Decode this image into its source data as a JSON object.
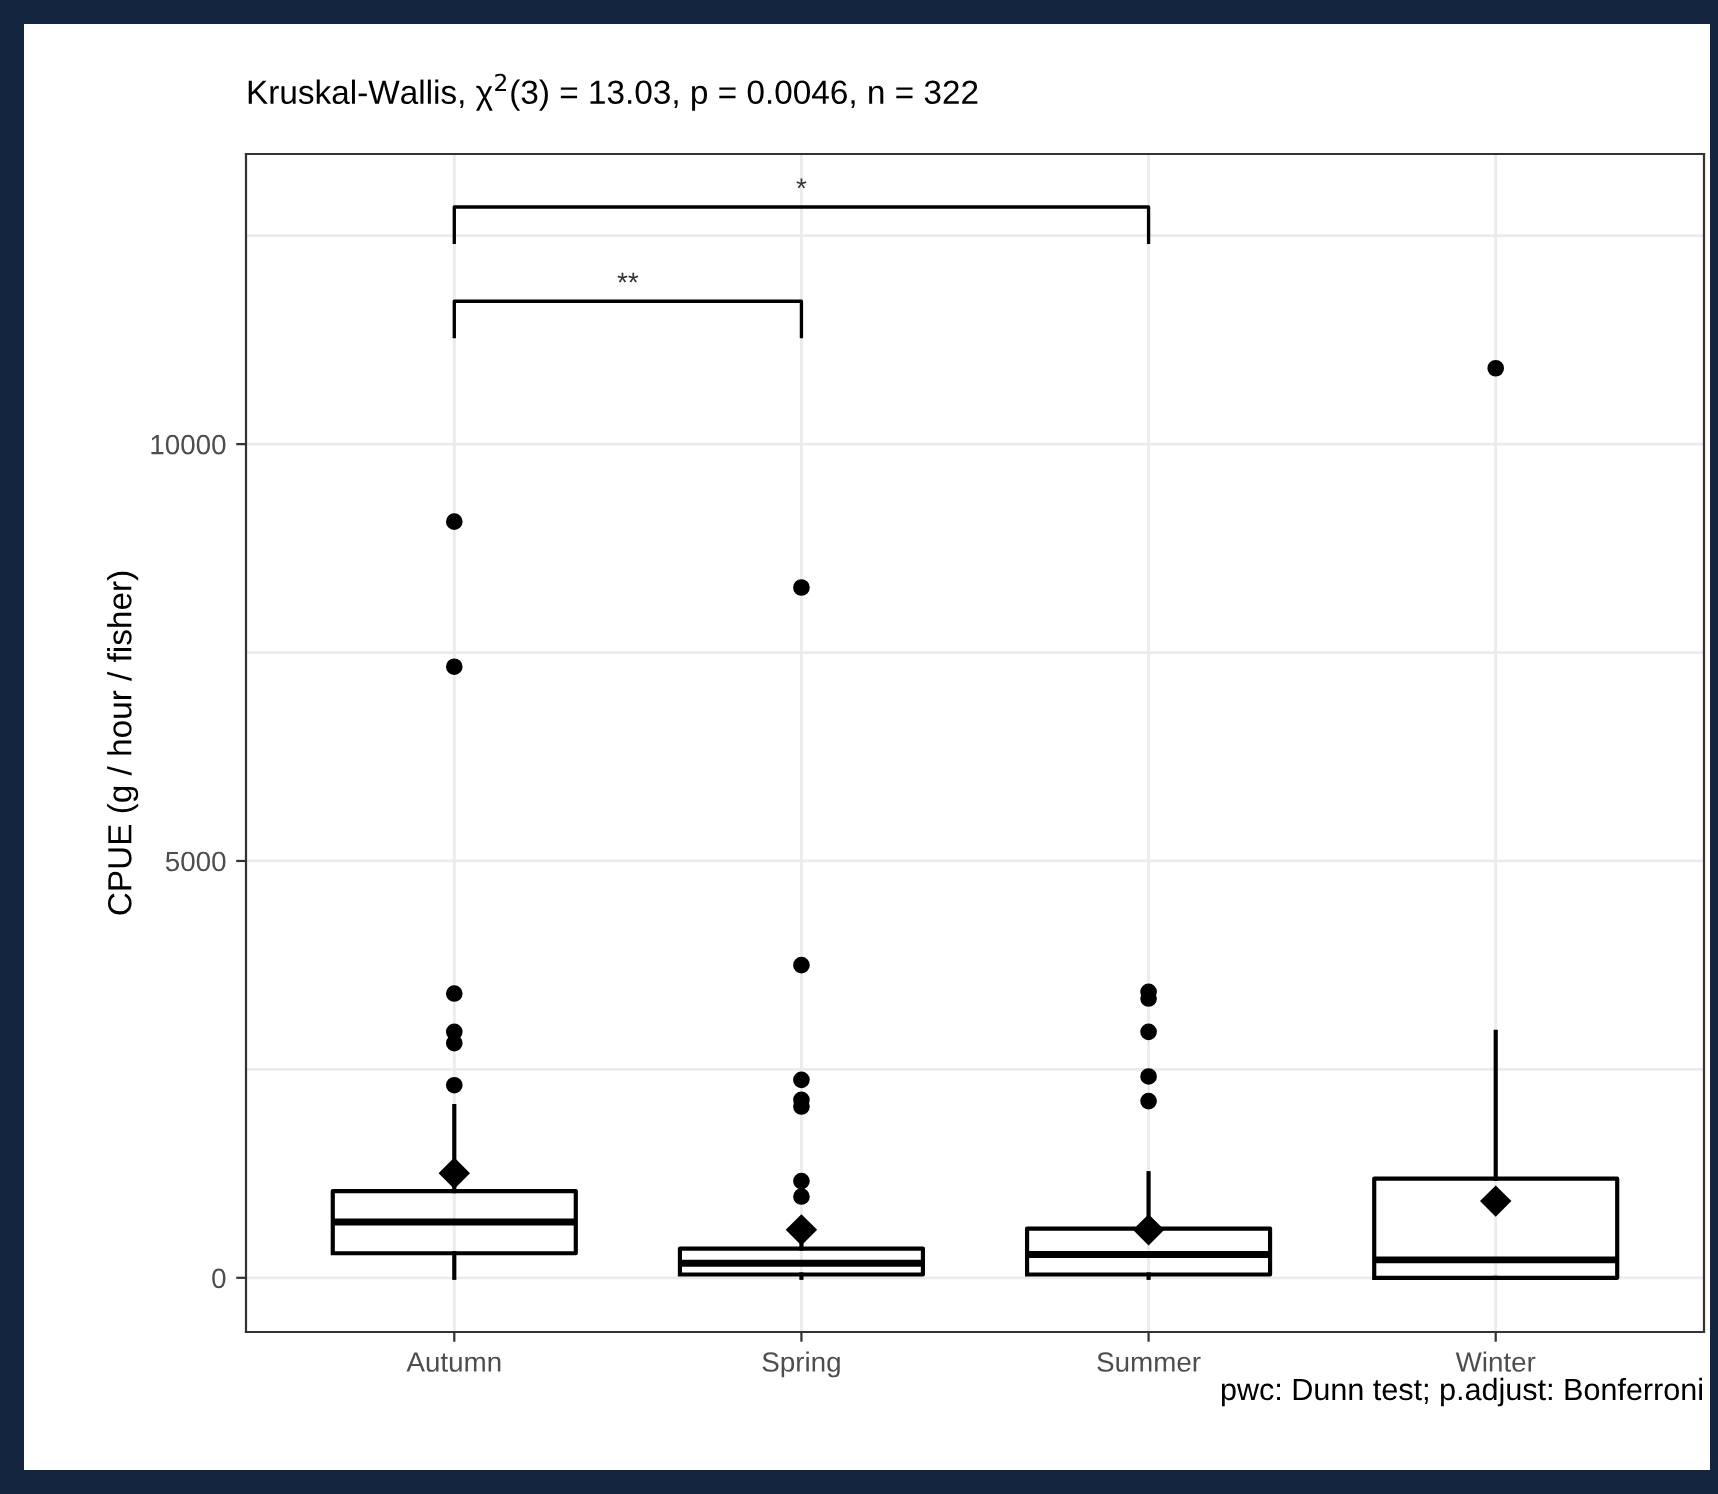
{
  "chart_data": {
    "type": "box",
    "title": "Kruskal-Wallis, χ$^{2}$(3) = 13.03, p = 0.0046, n = 322",
    "ylabel": "CPUE (g / hour / fisher)",
    "categories": [
      "Autumn",
      "Spring",
      "Summer",
      "Winter"
    ],
    "boxes": [
      {
        "low": 0,
        "q1": 295,
        "median": 670,
        "q3": 1040,
        "high": 2060,
        "mean": 1255,
        "outliers": [
          2310,
          2815,
          2950,
          3410,
          7330,
          9070
        ]
      },
      {
        "low": 0,
        "q1": 40,
        "median": 175,
        "q3": 350,
        "high": 600,
        "mean": 575,
        "outliers": [
          975,
          1160,
          2055,
          2135,
          2375,
          3750,
          8280
        ]
      },
      {
        "low": 0,
        "q1": 40,
        "median": 280,
        "q3": 590,
        "high": 1255,
        "mean": 575,
        "outliers": [
          2120,
          2415,
          2950,
          3350,
          3430
        ]
      },
      {
        "low": 0,
        "q1": 0,
        "median": 215,
        "q3": 1190,
        "high": 2950,
        "mean": 920,
        "outliers": [
          10910
        ]
      }
    ],
    "color": "#000000",
    "ylim": [
      -650,
      13480
    ],
    "yticks": [
      0,
      {
        "value": 2500,
        "label": null
      },
      5000,
      {
        "value": 7500,
        "label": null
      },
      10000,
      {
        "value": 12500,
        "label": null
      }
    ],
    "grid": true,
    "marker": "circle",
    "annotations": [
      "*",
      "**",
      "pwc: Dunn test; p.adjust: Bonferroni"
    ]
  }
}
